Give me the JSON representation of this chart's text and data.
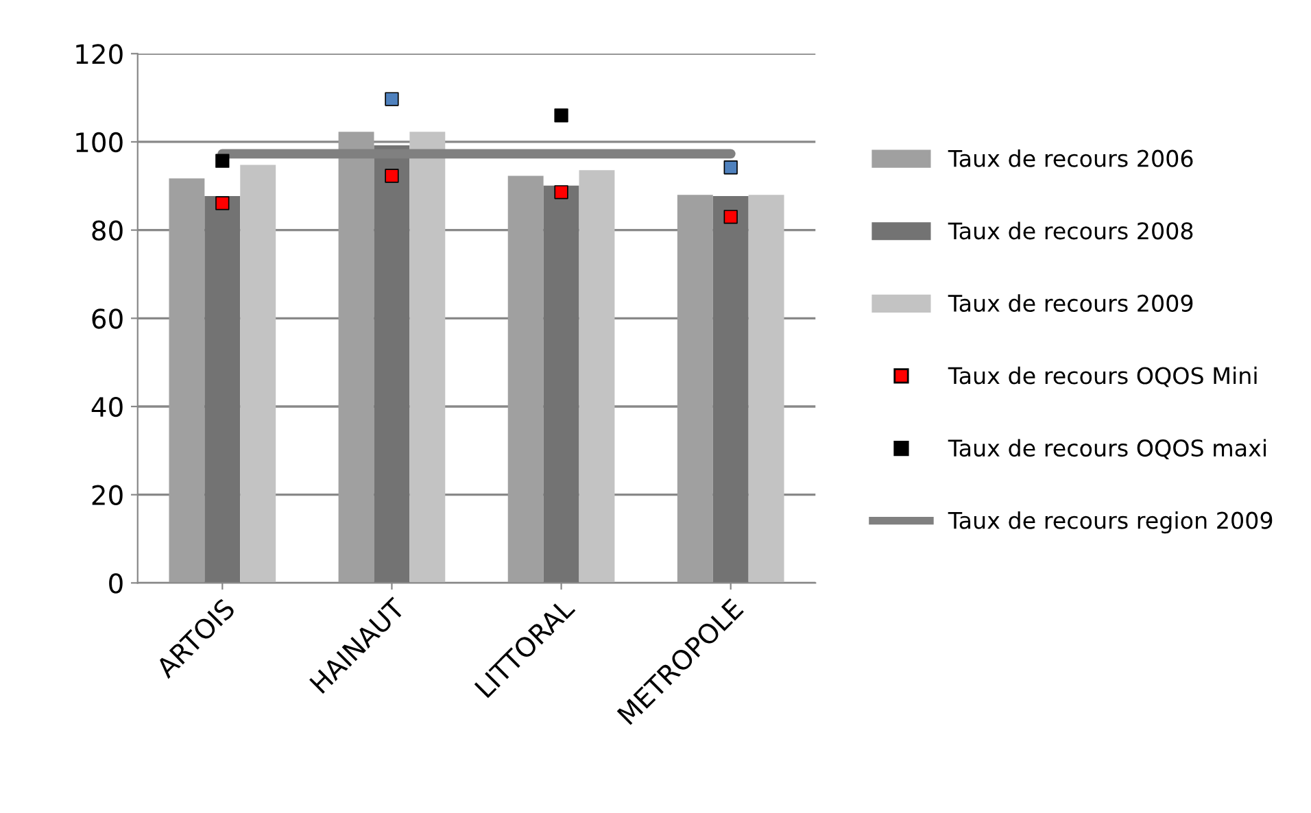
{
  "chart_data": {
    "type": "bar",
    "categories": [
      "ARTOIS",
      "HAINAUT",
      "LITTORAL",
      "METROPOLE"
    ],
    "series": [
      {
        "name": "Taux de recours 2006",
        "color": "#a0a0a0",
        "values": [
          91.7,
          102.3,
          92.3,
          88.0
        ]
      },
      {
        "name": "Taux de recours 2008",
        "color": "#737373",
        "values": [
          87.7,
          99.2,
          90.1,
          87.7
        ]
      },
      {
        "name": "Taux de recours 2009",
        "color": "#c3c3c3",
        "values": [
          94.8,
          102.3,
          93.6,
          88.0
        ]
      },
      {
        "name": "Taux de recours OQOS Mini",
        "type": "scatter",
        "marker": "square",
        "color": "#ff0000",
        "values": [
          86.1,
          92.3,
          88.6,
          83.0
        ]
      },
      {
        "name": "Taux de recours OQOS maxi",
        "type": "scatter",
        "marker": "square",
        "color": "#000000",
        "colors": [
          "#000000",
          "#4f81bd",
          "#000000",
          "#4f81bd"
        ],
        "values": [
          95.7,
          109.7,
          106.0,
          94.2
        ]
      },
      {
        "name": "Taux de recours region 2009",
        "type": "line",
        "color": "#808080",
        "values": [
          97.3,
          97.3,
          97.3,
          97.3
        ]
      }
    ],
    "ylim": [
      0,
      120
    ],
    "yticks": [
      0,
      20,
      40,
      60,
      80,
      100,
      120
    ],
    "grid": "y",
    "legend": "right"
  }
}
